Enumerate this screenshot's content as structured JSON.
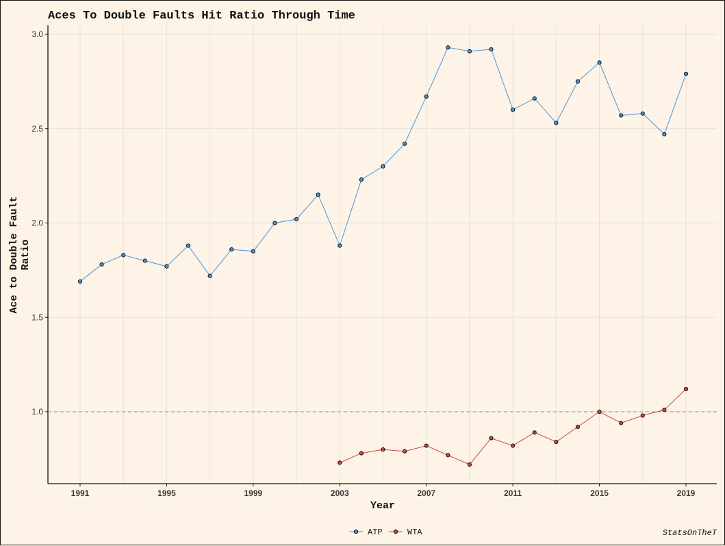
{
  "chart_data": {
    "type": "line",
    "title": "Aces To Double Faults Hit Ratio Through Time",
    "xlabel": "Year",
    "ylabel_lines": [
      "Ace to Double Fault",
      "Ratio"
    ],
    "caption": "StatsOnTheT",
    "xlim": [
      1991,
      2019
    ],
    "ylim": [
      0.7,
      3.0
    ],
    "x_ticks": [
      1991,
      1995,
      1999,
      2003,
      2007,
      2011,
      2015,
      2019
    ],
    "x_tick_labels": [
      "1991",
      "1995",
      "1999",
      "2003",
      "2007",
      "2011",
      "2015",
      "2019"
    ],
    "y_ticks": [
      1.0,
      1.5,
      2.0,
      2.5,
      3.0
    ],
    "y_tick_labels": [
      "1.0",
      "1.5",
      "2.0",
      "2.5",
      "3.0"
    ],
    "reference_line": {
      "y": 1.0,
      "style": "dashed"
    },
    "grid": true,
    "legend_position": "bottom",
    "series": [
      {
        "name": "ATP",
        "color": "#4a96d6",
        "x": [
          1991,
          1992,
          1993,
          1994,
          1995,
          1996,
          1997,
          1998,
          1999,
          2000,
          2001,
          2002,
          2003,
          2004,
          2005,
          2006,
          2007,
          2008,
          2009,
          2010,
          2011,
          2012,
          2013,
          2014,
          2015,
          2016,
          2017,
          2018,
          2019
        ],
        "y": [
          1.69,
          1.78,
          1.83,
          1.8,
          1.77,
          1.88,
          1.72,
          1.86,
          1.85,
          2.0,
          2.02,
          2.15,
          1.88,
          2.23,
          2.3,
          2.42,
          2.67,
          2.93,
          2.91,
          2.92,
          2.6,
          2.66,
          2.53,
          2.75,
          2.85,
          2.57,
          2.58,
          2.47,
          2.79
        ]
      },
      {
        "name": "WTA",
        "color": "#c8493e",
        "x": [
          2003,
          2004,
          2005,
          2006,
          2007,
          2008,
          2009,
          2010,
          2011,
          2012,
          2013,
          2014,
          2015,
          2016,
          2017,
          2018,
          2019
        ],
        "y": [
          0.73,
          0.78,
          0.8,
          0.79,
          0.82,
          0.77,
          0.72,
          0.86,
          0.82,
          0.89,
          0.84,
          0.92,
          1.0,
          0.94,
          0.98,
          1.01,
          1.12
        ]
      }
    ]
  }
}
